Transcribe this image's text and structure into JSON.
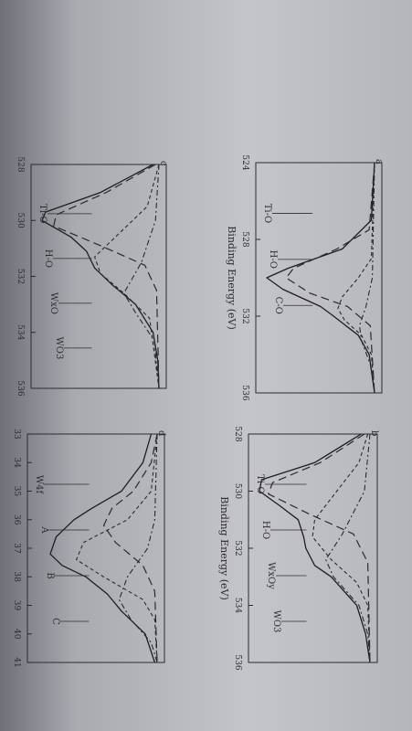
{
  "chart_data": [
    {
      "panel": "a",
      "type": "line",
      "xlabel": "Binding Energy (eV)",
      "x_ticks": [
        "524",
        "528",
        "532",
        "536"
      ],
      "xlim": [
        524,
        536
      ],
      "peak_labels": [
        "Ti-O",
        "H-O",
        "C-O"
      ],
      "series": [
        {
          "values": [
            [
              524,
              0
            ],
            [
              527,
              0.03
            ],
            [
              528.5,
              0.3
            ],
            [
              529.5,
              0.8
            ],
            [
              530,
              1.0
            ],
            [
              530.6,
              0.85
            ],
            [
              531.5,
              0.5
            ],
            [
              532,
              0.38
            ],
            [
              533,
              0.15
            ],
            [
              534,
              0.05
            ],
            [
              536,
              0
            ]
          ]
        },
        {
          "values": [
            [
              524,
              0
            ],
            [
              527.5,
              0.05
            ],
            [
              528.5,
              0.35
            ],
            [
              529.5,
              0.75
            ],
            [
              530,
              0.82
            ],
            [
              530.8,
              0.6
            ],
            [
              531.5,
              0.25
            ],
            [
              532.5,
              0.04
            ],
            [
              536,
              0
            ]
          ]
        },
        {
          "values": [
            [
              524,
              0
            ],
            [
              529,
              0.03
            ],
            [
              530,
              0.15
            ],
            [
              531,
              0.3
            ],
            [
              531.6,
              0.34
            ],
            [
              532.2,
              0.28
            ],
            [
              533,
              0.12
            ],
            [
              534,
              0.03
            ],
            [
              536,
              0
            ]
          ]
        },
        {
          "values": [
            [
              524,
              0
            ],
            [
              530,
              0.02
            ],
            [
              531.5,
              0.08
            ],
            [
              532.5,
              0.14
            ],
            [
              533.3,
              0.12
            ],
            [
              534.5,
              0.04
            ],
            [
              536,
              0
            ]
          ]
        }
      ]
    },
    {
      "panel": "b",
      "type": "line",
      "xlabel": "Binding Energy (eV)",
      "x_ticks": [
        "528",
        "530",
        "532",
        "534",
        "536"
      ],
      "xlim": [
        528,
        536
      ],
      "peak_labels": [
        "Ti-O",
        "H-O",
        "WxOy",
        "WO3"
      ],
      "series": [
        {
          "values": [
            [
              528,
              0.08
            ],
            [
              529,
              0.5
            ],
            [
              529.6,
              0.98
            ],
            [
              530,
              1.0
            ],
            [
              530.5,
              0.82
            ],
            [
              531,
              0.65
            ],
            [
              531.6,
              0.6
            ],
            [
              532,
              0.58
            ],
            [
              532.6,
              0.5
            ],
            [
              533,
              0.35
            ],
            [
              534,
              0.12
            ],
            [
              535,
              0.04
            ],
            [
              536,
              0
            ]
          ]
        },
        {
          "values": [
            [
              528,
              0.05
            ],
            [
              529,
              0.45
            ],
            [
              529.7,
              0.88
            ],
            [
              530.1,
              0.92
            ],
            [
              530.8,
              0.55
            ],
            [
              531.5,
              0.15
            ],
            [
              532.5,
              0.02
            ],
            [
              536,
              0
            ]
          ]
        },
        {
          "values": [
            [
              528,
              0.02
            ],
            [
              529,
              0.1
            ],
            [
              530,
              0.3
            ],
            [
              531,
              0.5
            ],
            [
              531.6,
              0.52
            ],
            [
              532.4,
              0.35
            ],
            [
              533.2,
              0.12
            ],
            [
              534,
              0.02
            ],
            [
              536,
              0
            ]
          ]
        },
        {
          "values": [
            [
              528,
              0
            ],
            [
              530,
              0.05
            ],
            [
              531.5,
              0.25
            ],
            [
              532.4,
              0.4
            ],
            [
              533,
              0.33
            ],
            [
              534,
              0.1
            ],
            [
              535,
              0.02
            ],
            [
              536,
              0
            ]
          ]
        }
      ]
    },
    {
      "panel": "c",
      "type": "line",
      "x_ticks": [
        "528",
        "530",
        "532",
        "534",
        "536"
      ],
      "xlim": [
        528,
        536
      ],
      "peak_labels": [
        "Ti-O",
        "H-O",
        "WxO",
        "WO3"
      ],
      "series": [
        {
          "values": [
            [
              528,
              0.05
            ],
            [
              529,
              0.5
            ],
            [
              529.7,
              0.97
            ],
            [
              530,
              1.0
            ],
            [
              530.6,
              0.75
            ],
            [
              531.1,
              0.62
            ],
            [
              531.7,
              0.55
            ],
            [
              532.3,
              0.4
            ],
            [
              533,
              0.2
            ],
            [
              534,
              0.05
            ],
            [
              535,
              0.01
            ],
            [
              536,
              0
            ]
          ]
        },
        {
          "values": [
            [
              528,
              0.03
            ],
            [
              529,
              0.45
            ],
            [
              529.8,
              0.88
            ],
            [
              530.2,
              0.9
            ],
            [
              530.9,
              0.5
            ],
            [
              531.6,
              0.12
            ],
            [
              532.5,
              0.02
            ],
            [
              536,
              0
            ]
          ]
        },
        {
          "values": [
            [
              528,
              0
            ],
            [
              529.5,
              0.1
            ],
            [
              530.5,
              0.35
            ],
            [
              531.3,
              0.55
            ],
            [
              531.9,
              0.5
            ],
            [
              532.6,
              0.3
            ],
            [
              533.5,
              0.08
            ],
            [
              536,
              0
            ]
          ]
        },
        {
          "values": [
            [
              528,
              0
            ],
            [
              530,
              0.03
            ],
            [
              531.5,
              0.15
            ],
            [
              532.6,
              0.3
            ],
            [
              533.3,
              0.2
            ],
            [
              534.3,
              0.04
            ],
            [
              536,
              0
            ]
          ]
        }
      ]
    },
    {
      "panel": "d",
      "type": "line",
      "x_ticks": [
        "33",
        "34",
        "35",
        "36",
        "37",
        "38",
        "39",
        "40",
        "41"
      ],
      "xlim": [
        33,
        41
      ],
      "peak_labels": [
        "W4f",
        "A",
        "B",
        "C"
      ],
      "series": [
        {
          "values": [
            [
              33,
              0.05
            ],
            [
              34,
              0.12
            ],
            [
              35,
              0.3
            ],
            [
              35.6,
              0.55
            ],
            [
              36,
              0.7
            ],
            [
              36.6,
              0.85
            ],
            [
              37.2,
              0.9
            ],
            [
              37.6,
              0.8
            ],
            [
              38,
              0.6
            ],
            [
              38.6,
              0.42
            ],
            [
              39.2,
              0.3
            ],
            [
              40,
              0.1
            ],
            [
              41,
              0.02
            ]
          ]
        },
        {
          "values": [
            [
              33,
              0
            ],
            [
              34,
              0.05
            ],
            [
              35,
              0.2
            ],
            [
              35.6,
              0.38
            ],
            [
              36.2,
              0.45
            ],
            [
              36.8,
              0.35
            ],
            [
              37.6,
              0.12
            ],
            [
              38.5,
              0.02
            ],
            [
              41,
              0
            ]
          ]
        },
        {
          "values": [
            [
              33,
              0
            ],
            [
              35,
              0.05
            ],
            [
              36,
              0.25
            ],
            [
              36.8,
              0.62
            ],
            [
              37.4,
              0.68
            ],
            [
              38,
              0.45
            ],
            [
              38.8,
              0.12
            ],
            [
              39.5,
              0.02
            ],
            [
              41,
              0
            ]
          ]
        },
        {
          "values": [
            [
              33,
              0
            ],
            [
              36,
              0.02
            ],
            [
              37,
              0.08
            ],
            [
              38,
              0.25
            ],
            [
              38.8,
              0.32
            ],
            [
              39.5,
              0.22
            ],
            [
              40.3,
              0.05
            ],
            [
              41,
              0
            ]
          ]
        }
      ]
    }
  ]
}
